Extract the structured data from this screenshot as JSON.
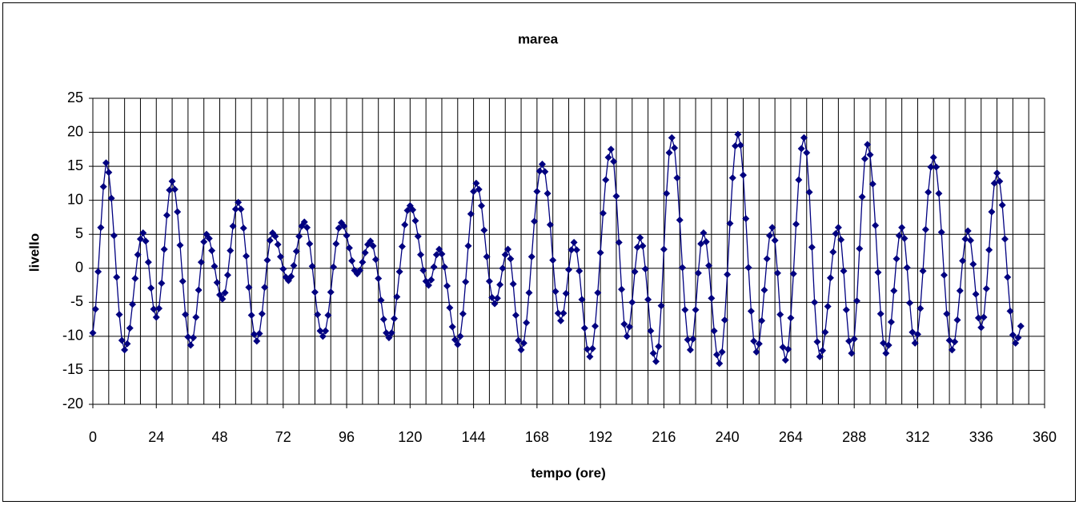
{
  "chart_data": {
    "type": "line",
    "title": "marea",
    "xlabel": "tempo (ore)",
    "ylabel": "livello",
    "color": "#000080",
    "marker": "diamond",
    "xlim": [
      0,
      360
    ],
    "xticks": [
      0,
      24,
      48,
      72,
      96,
      120,
      144,
      168,
      192,
      216,
      240,
      264,
      288,
      312,
      336,
      360
    ],
    "xgrid": [
      0,
      6,
      12,
      18,
      24,
      30,
      36,
      42,
      48,
      54,
      60,
      66,
      72,
      78,
      84,
      90,
      96,
      102,
      108,
      114,
      120,
      126,
      132,
      138,
      144,
      150,
      156,
      162,
      168,
      174,
      180,
      186,
      192,
      198,
      204,
      210,
      216,
      222,
      228,
      234,
      240,
      246,
      252,
      258,
      264,
      270,
      276,
      282,
      288,
      294,
      300,
      306,
      312,
      318,
      324,
      330,
      336,
      342,
      348,
      354,
      360
    ],
    "ylim": [
      -20,
      25
    ],
    "yticks": [
      -20,
      -15,
      -10,
      -5,
      0,
      5,
      10,
      15,
      20,
      25
    ],
    "grid": true,
    "x": [
      0,
      1,
      2,
      3,
      4,
      5,
      6,
      7,
      8,
      9,
      10,
      11,
      12,
      13,
      14,
      15,
      16,
      17,
      18,
      19,
      20,
      21,
      22,
      23,
      24,
      25,
      26,
      27,
      28,
      29,
      30,
      31,
      32,
      33,
      34,
      35,
      36,
      37,
      38,
      39,
      40,
      41,
      42,
      43,
      44,
      45,
      46,
      47,
      48,
      49,
      50,
      51,
      52,
      53,
      54,
      55,
      56,
      57,
      58,
      59,
      60,
      61,
      62,
      63,
      64,
      65,
      66,
      67,
      68,
      69,
      70,
      71,
      72,
      73,
      74,
      75,
      76,
      77,
      78,
      79,
      80,
      81,
      82,
      83,
      84,
      85,
      86,
      87,
      88,
      89,
      90,
      91,
      92,
      93,
      94,
      95,
      96,
      97,
      98,
      99,
      100,
      101,
      102,
      103,
      104,
      105,
      106,
      107,
      108,
      109,
      110,
      111,
      112,
      113,
      114,
      115,
      116,
      117,
      118,
      119,
      120,
      121,
      122,
      123,
      124,
      125,
      126,
      127,
      128,
      129,
      130,
      131,
      132,
      133,
      134,
      135,
      136,
      137,
      138,
      139,
      140,
      141,
      142,
      143,
      144,
      145,
      146,
      147,
      148,
      149,
      150,
      151,
      152,
      153,
      154,
      155,
      156,
      157,
      158,
      159,
      160,
      161,
      162,
      163,
      164,
      165,
      166,
      167,
      168,
      169,
      170,
      171,
      172,
      173,
      174,
      175,
      176,
      177,
      178,
      179,
      180,
      181,
      182,
      183,
      184,
      185,
      186,
      187,
      188,
      189,
      190,
      191,
      192,
      193,
      194,
      195,
      196,
      197,
      198,
      199,
      200,
      201,
      202,
      203,
      204,
      205,
      206,
      207,
      208,
      209,
      210,
      211,
      212,
      213,
      214,
      215,
      216,
      217,
      218,
      219,
      220,
      221,
      222,
      223,
      224,
      225,
      226,
      227,
      228,
      229,
      230,
      231,
      232,
      233,
      234,
      235,
      236,
      237,
      238,
      239,
      240,
      241,
      242,
      243,
      244,
      245,
      246,
      247,
      248,
      249,
      250,
      251,
      252,
      253,
      254,
      255,
      256,
      257,
      258,
      259,
      260,
      261,
      262,
      263,
      264,
      265,
      266,
      267,
      268,
      269,
      270,
      271,
      272,
      273,
      274,
      275,
      276,
      277,
      278,
      279,
      280,
      281,
      282,
      283,
      284,
      285,
      286,
      287,
      288,
      289,
      290,
      291,
      292,
      293,
      294,
      295,
      296,
      297,
      298,
      299,
      300,
      301,
      302,
      303,
      304,
      305,
      306,
      307,
      308,
      309,
      310,
      311,
      312,
      313,
      314,
      315,
      316,
      317,
      318,
      319,
      320,
      321,
      322,
      323,
      324,
      325,
      326,
      327,
      328,
      329,
      330,
      331,
      332,
      333,
      334,
      335,
      336,
      337,
      338,
      339,
      340,
      341,
      342,
      343,
      344,
      345,
      346,
      347,
      348,
      349,
      350,
      351
    ],
    "values": [
      -9.5,
      -6,
      -0.5,
      6,
      12,
      15.5,
      14.1,
      10.3,
      4.8,
      -1.3,
      -6.8,
      -10.6,
      -12,
      -11.1,
      -8.8,
      -5.3,
      -1.5,
      2,
      4.3,
      5.2,
      4,
      0.9,
      -2.9,
      -6,
      -7.2,
      -5.9,
      -2.2,
      2.8,
      7.8,
      11.5,
      12.8,
      11.6,
      8.3,
      3.4,
      -1.9,
      -6.8,
      -10.1,
      -11.3,
      -10.2,
      -7.2,
      -3.2,
      0.9,
      3.9,
      5,
      4.4,
      2.6,
      0.3,
      -2.1,
      -3.9,
      -4.5,
      -3.6,
      -1,
      2.6,
      6.2,
      8.7,
      9.7,
      8.7,
      5.9,
      1.8,
      -2.8,
      -6.9,
      -9.7,
      -10.7,
      -9.6,
      -6.7,
      -2.8,
      1.2,
      4.1,
      5.2,
      4.7,
      3.5,
      1.7,
      -0.1,
      -1.3,
      -1.8,
      -1.2,
      0.4,
      2.5,
      4.7,
      6.2,
      6.8,
      6,
      3.6,
      0.3,
      -3.5,
      -6.8,
      -9.2,
      -10,
      -9.2,
      -6.9,
      -3.5,
      0.2,
      3.6,
      5.9,
      6.7,
      6.2,
      4.8,
      3,
      1.1,
      -0.3,
      -0.8,
      -0.3,
      0.9,
      2.3,
      3.5,
      4,
      3.3,
      1.3,
      -1.5,
      -4.7,
      -7.5,
      -9.5,
      -10.2,
      -9.5,
      -7.4,
      -4.2,
      -0.5,
      3.2,
      6.4,
      8.5,
      9.2,
      8.6,
      7,
      4.7,
      2,
      -0.3,
      -1.9,
      -2.5,
      -1.7,
      0.2,
      2,
      2.8,
      2.1,
      0.2,
      -2.6,
      -5.8,
      -8.6,
      -10.5,
      -11.2,
      -10,
      -6.7,
      -2,
      3.3,
      8,
      11.3,
      12.5,
      11.6,
      9.2,
      5.6,
      1.7,
      -1.9,
      -4.3,
      -5.2,
      -4.4,
      -2.4,
      0,
      2,
      2.8,
      1.4,
      -2.3,
      -6.9,
      -10.6,
      -12,
      -11,
      -8,
      -3.6,
      1.7,
      6.9,
      11.3,
      14.3,
      15.3,
      14.2,
      11,
      6.4,
      1.2,
      -3.4,
      -6.6,
      -7.7,
      -6.6,
      -3.7,
      -0.2,
      2.7,
      3.8,
      2.7,
      -0.4,
      -4.6,
      -8.8,
      -11.9,
      -13,
      -11.8,
      -8.5,
      -3.6,
      2.3,
      8.1,
      13,
      16.3,
      17.5,
      15.7,
      10.6,
      3.8,
      -3.1,
      -8.2,
      -10,
      -8.6,
      -5,
      -0.5,
      3.1,
      4.5,
      3.3,
      -0.1,
      -4.6,
      -9.2,
      -12.5,
      -13.7,
      -11.5,
      -5.5,
      2.8,
      11,
      17,
      19.2,
      17.7,
      13.3,
      7.1,
      0.1,
      -6.1,
      -10.5,
      -12,
      -10.4,
      -6.1,
      -0.7,
      3.6,
      5.2,
      3.9,
      0.4,
      -4.4,
      -9.2,
      -12.7,
      -14,
      -12.3,
      -7.6,
      -0.9,
      6.6,
      13.3,
      18,
      19.7,
      18.1,
      13.7,
      7.3,
      0.1,
      -6.3,
      -10.7,
      -12.3,
      -11.1,
      -7.7,
      -3.2,
      1.4,
      4.8,
      6,
      4.1,
      -0.7,
      -6.8,
      -11.6,
      -13.5,
      -11.9,
      -7.3,
      -0.8,
      6.5,
      13,
      17.6,
      19.2,
      17,
      11.2,
      3.1,
      -5,
      -10.8,
      -13,
      -12.1,
      -9.4,
      -5.6,
      -1.4,
      2.4,
      5.1,
      6,
      4.2,
      -0.4,
      -6.1,
      -10.7,
      -12.5,
      -10.4,
      -4.8,
      2.9,
      10.5,
      16.1,
      18.2,
      16.7,
      12.4,
      6.3,
      -0.6,
      -6.7,
      -11,
      -12.5,
      -11.3,
      -7.9,
      -3.3,
      1.4,
      4.8,
      6,
      4.4,
      0.1,
      -5.1,
      -9.4,
      -11,
      -9.7,
      -5.9,
      -0.4,
      5.7,
      11.2,
      14.9,
      16.3,
      14.9,
      11,
      5.3,
      -1,
      -6.7,
      -10.6,
      -12,
      -10.8,
      -7.6,
      -3.3,
      1.1,
      4.3,
      5.5,
      4.1,
      0.6,
      -3.8,
      -7.3,
      -8.7,
      -7.2,
      -3,
      2.7,
      8.3,
      12.5,
      14,
      12.8,
      9.3,
      4.3,
      -1.3,
      -6.3,
      -9.8,
      -11,
      -10.2,
      -8.5
    ]
  }
}
